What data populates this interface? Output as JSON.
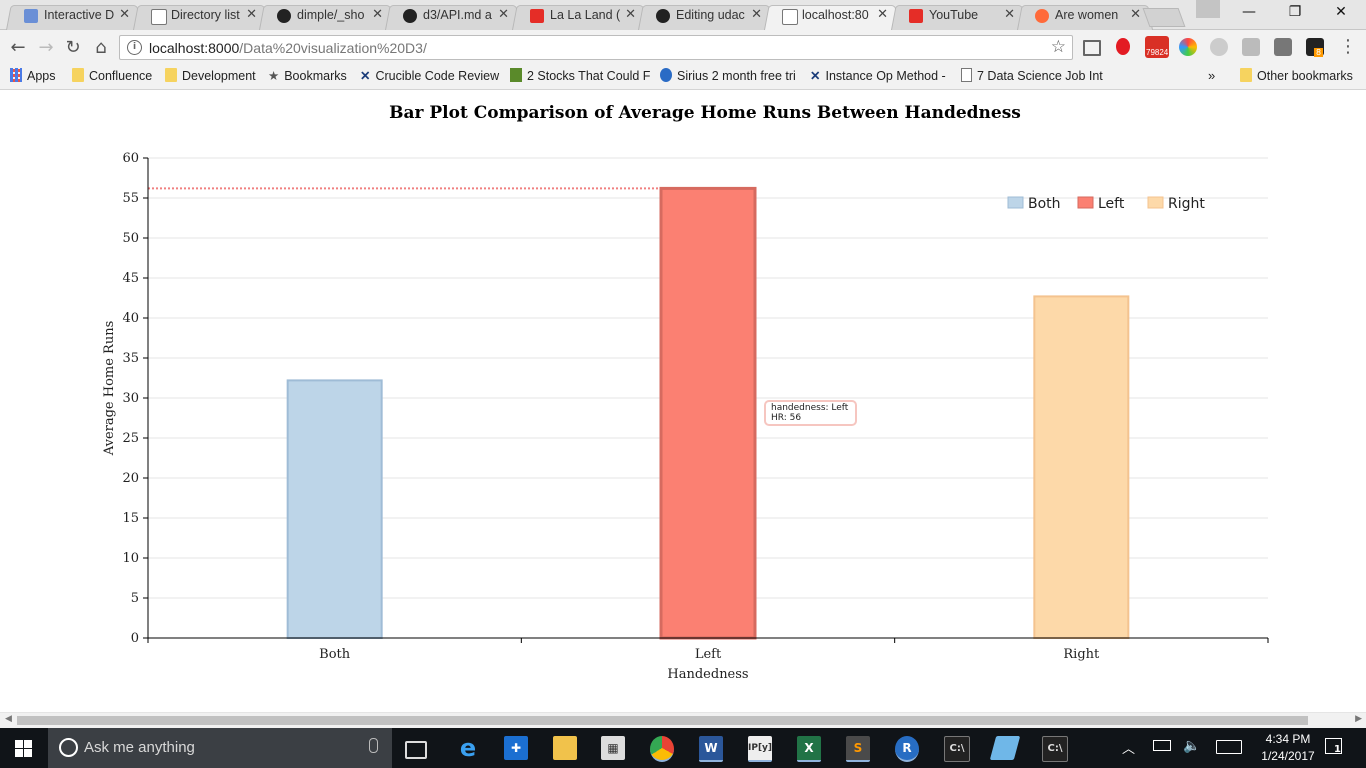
{
  "browser": {
    "tabs": [
      {
        "title": "Interactive D",
        "favicon": "chart-favicon",
        "color": "#6a8fd6",
        "active": false
      },
      {
        "title": "Directory list",
        "favicon": "page-favicon",
        "color": "#ffffff",
        "active": false
      },
      {
        "title": "dimple/_sho",
        "favicon": "github-favicon",
        "color": "#222222",
        "active": false
      },
      {
        "title": "d3/API.md a",
        "favicon": "github-favicon",
        "color": "#222222",
        "active": false
      },
      {
        "title": "La La Land (",
        "favicon": "youtube-favicon",
        "color": "#e52d27",
        "active": false
      },
      {
        "title": "Editing udac",
        "favicon": "github-favicon",
        "color": "#222222",
        "active": false
      },
      {
        "title": "localhost:80",
        "favicon": "page-favicon",
        "color": "#ffffff",
        "active": true
      },
      {
        "title": "YouTube",
        "favicon": "youtube-favicon",
        "color": "#e52d27",
        "active": false
      },
      {
        "title": "Are women",
        "favicon": "reddit-favicon",
        "color": "#ff6a3a",
        "active": false
      }
    ],
    "window_controls": {
      "minimize": "—",
      "maximize": "❐",
      "close": "✕"
    },
    "address": {
      "host": "localhost:8000",
      "path": "/Data%20visualization%20D3/"
    },
    "extensions": {
      "mail_badge": "79824",
      "amazon_badge": "8"
    },
    "bookmarks": [
      {
        "label": "Apps",
        "icon": "apps-grid-icon"
      },
      {
        "label": "Confluence",
        "icon": "folder-icon"
      },
      {
        "label": "Development",
        "icon": "folder-icon"
      },
      {
        "label": "Bookmarks",
        "icon": "star-icon"
      },
      {
        "label": "Crucible Code Review",
        "icon": "crucible-icon"
      },
      {
        "label": "2 Stocks That Could F",
        "icon": "stocks-icon"
      },
      {
        "label": "Sirius 2 month free tri",
        "icon": "sirius-icon"
      },
      {
        "label": "Instance Op Method -",
        "icon": "crucible-icon"
      },
      {
        "label": "7 Data Science Job Int",
        "icon": "page-icon"
      }
    ],
    "overflow": "»",
    "other_bookmarks": "Other bookmarks"
  },
  "chart_data": {
    "type": "bar",
    "title": "Bar Plot Comparison of Average Home Runs Between Handedness",
    "xlabel": "Handedness",
    "ylabel": "Average Home Runs",
    "categories": [
      "Both",
      "Left",
      "Right"
    ],
    "values": [
      32.2,
      56.2,
      42.7
    ],
    "ylim": [
      0,
      60
    ],
    "yticks": [
      0,
      5,
      10,
      15,
      20,
      25,
      30,
      35,
      40,
      45,
      50,
      55,
      60
    ],
    "grid": true,
    "legend": {
      "position": "top-right",
      "entries": [
        "Both",
        "Left",
        "Right"
      ]
    },
    "colors": {
      "Both": {
        "fill": "#bdd5e8",
        "stroke": "#9fbcd6"
      },
      "Left": {
        "fill": "#fb8072",
        "stroke": "#d66a5f"
      },
      "Right": {
        "fill": "#fdd9a9",
        "stroke": "#f4c38f"
      }
    },
    "reference_line": {
      "value": 56.2,
      "color": "#f08080"
    },
    "tooltip": {
      "line1": "handedness: Left",
      "line2": "HR: 56"
    }
  },
  "taskbar": {
    "search_placeholder": "Ask me anything",
    "time": "4:34 PM",
    "date": "1/24/2017",
    "notifications": "1"
  }
}
